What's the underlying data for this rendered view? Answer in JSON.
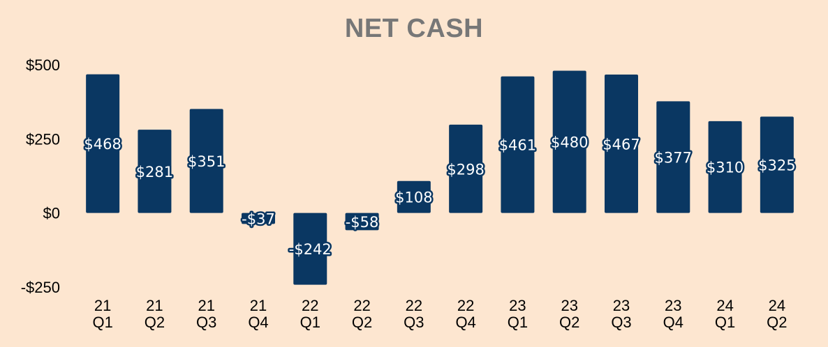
{
  "chart_data": {
    "type": "bar",
    "title": "NET CASH",
    "categories": [
      [
        "21",
        "Q1"
      ],
      [
        "21",
        "Q2"
      ],
      [
        "21",
        "Q3"
      ],
      [
        "21",
        "Q4"
      ],
      [
        "22",
        "Q1"
      ],
      [
        "22",
        "Q2"
      ],
      [
        "22",
        "Q3"
      ],
      [
        "22",
        "Q4"
      ],
      [
        "23",
        "Q1"
      ],
      [
        "23",
        "Q2"
      ],
      [
        "23",
        "Q3"
      ],
      [
        "23",
        "Q4"
      ],
      [
        "24",
        "Q1"
      ],
      [
        "24",
        "Q2"
      ]
    ],
    "values": [
      468,
      281,
      351,
      -37,
      -242,
      -58,
      108,
      298,
      461,
      480,
      467,
      377,
      310,
      325
    ],
    "data_labels": [
      "$468",
      "$281",
      "$351",
      "-$37",
      "-$242",
      "-$58",
      "$108",
      "$298",
      "$461",
      "$480",
      "$467",
      "$377",
      "$310",
      "$325"
    ],
    "ylim": [
      -250,
      500
    ],
    "yticks": [
      500,
      250,
      0,
      -250
    ],
    "ytick_labels": [
      "$500",
      "$250",
      "$0",
      "-$250"
    ],
    "xlabel": "",
    "ylabel": "",
    "grid": false,
    "legend": "none",
    "colors": {
      "background": "#fde6d0",
      "bar": "#0a3762",
      "title": "#777777"
    }
  }
}
